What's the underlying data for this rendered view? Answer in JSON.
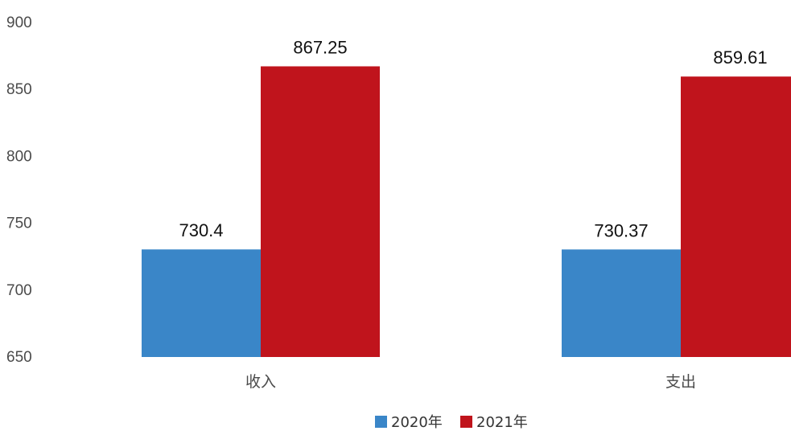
{
  "chart_data": {
    "type": "bar",
    "categories": [
      "收入",
      "支出"
    ],
    "series": [
      {
        "name": "2020年",
        "values": [
          730.4,
          730.37
        ],
        "color": "#3a86c8"
      },
      {
        "name": "2021年",
        "values": [
          867.25,
          859.61
        ],
        "color": "#c0141c"
      }
    ],
    "data_labels": [
      [
        "730.4",
        "730.37"
      ],
      [
        "867.25",
        "859.61"
      ]
    ],
    "y_ticks": [
      650,
      700,
      750,
      800,
      850,
      900
    ],
    "ylim": [
      650,
      900
    ],
    "grid": false,
    "legend_position": "bottom-center"
  }
}
